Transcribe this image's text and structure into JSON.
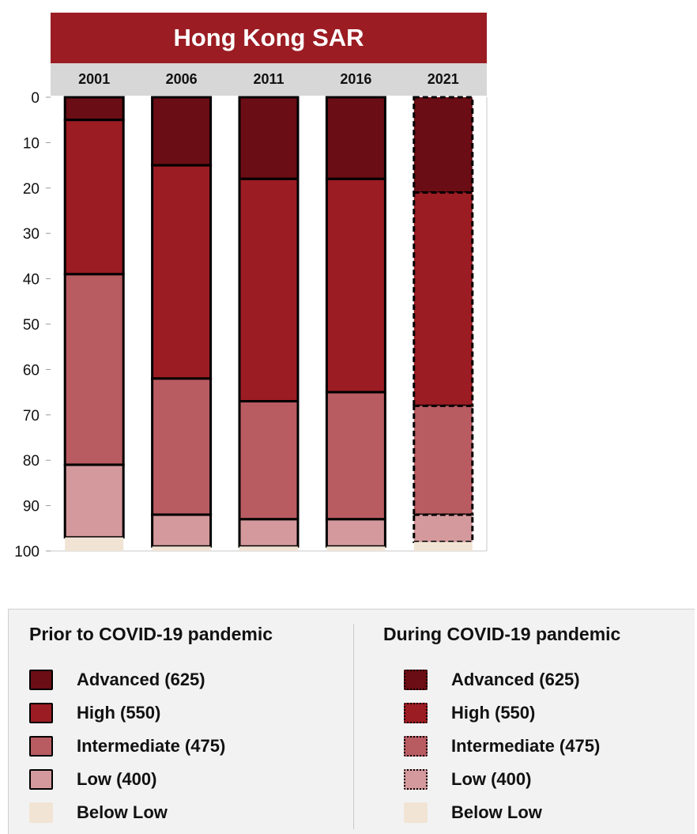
{
  "chart_data": {
    "type": "bar",
    "title": "Hong Kong SAR",
    "categories": [
      "2001",
      "2006",
      "2011",
      "2016",
      "2021"
    ],
    "ylim": [
      0,
      100
    ],
    "y_ticks": [
      "0",
      "10",
      "20",
      "30",
      "40",
      "50",
      "60",
      "70",
      "80",
      "90",
      "100"
    ],
    "y_inverted": true,
    "stacked": true,
    "series": [
      {
        "name": "Advanced (625)",
        "values": [
          5,
          15,
          18,
          18,
          21
        ]
      },
      {
        "name": "High (550)",
        "values": [
          34,
          47,
          49,
          47,
          47
        ]
      },
      {
        "name": "Intermediate (475)",
        "values": [
          42,
          30,
          26,
          28,
          24
        ]
      },
      {
        "name": "Low (400)",
        "values": [
          16,
          7,
          6,
          6,
          6
        ]
      },
      {
        "name": "Below Low",
        "values": [
          3,
          1,
          1,
          1,
          2
        ]
      }
    ],
    "colors": {
      "Advanced (625)": "#6b0d14",
      "High (550)": "#9b1c23",
      "Intermediate (475)": "#b85c62",
      "Low (400)": "#d4999c",
      "Below Low": "#f1e4d4"
    },
    "pandemic_period": [
      "Prior to COVID-19 pandemic",
      "Prior to COVID-19 pandemic",
      "Prior to COVID-19 pandemic",
      "Prior to COVID-19 pandemic",
      "During COVID-19 pandemic"
    ]
  },
  "legend": {
    "prior": {
      "heading": "Prior to COVID-19 pandemic",
      "items": [
        "Advanced (625)",
        "High (550)",
        "Intermediate (475)",
        "Low (400)",
        "Below Low"
      ]
    },
    "during": {
      "heading": "During COVID-19 pandemic",
      "items": [
        "Advanced (625)",
        "High (550)",
        "Intermediate (475)",
        "Low (400)",
        "Below Low"
      ]
    }
  }
}
